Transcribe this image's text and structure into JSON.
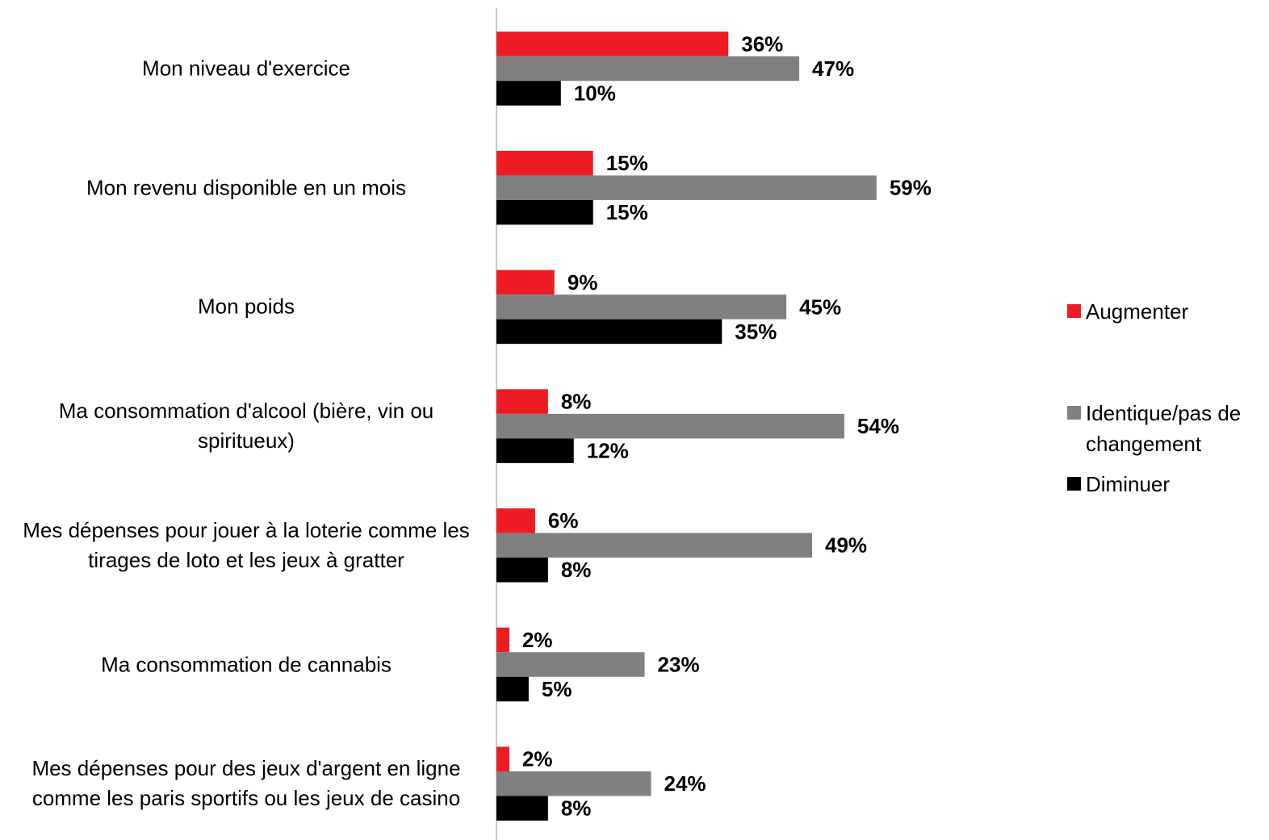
{
  "chart_data": {
    "type": "hbar",
    "categories": [
      "Mon niveau d'exercice",
      "Mon revenu disponible en un mois",
      "Mon poids",
      "Ma consommation d'alcool (bière, vin ou spiritueux)",
      "Mes dépenses pour jouer à la loterie comme les tirages de loto et les jeux à gratter",
      "Ma consommation de cannabis",
      "Mes dépenses pour des jeux d'argent en ligne comme les paris sportifs ou les jeux de casino"
    ],
    "xlim": [
      0,
      100
    ],
    "legend": "right",
    "series": [
      {
        "name": "Augmenter",
        "color": "#ed1c24",
        "values": [
          36,
          15,
          9,
          8,
          6,
          2,
          2
        ],
        "value_labels": [
          "36%",
          "15%",
          "9%",
          "8%",
          "6%",
          "2%",
          "2%"
        ]
      },
      {
        "name": "Identique/pas de changement",
        "color": "#808080",
        "values": [
          47,
          59,
          45,
          54,
          49,
          23,
          24
        ],
        "value_labels": [
          "47%",
          "59%",
          "45%",
          "54%",
          "49%",
          "23%",
          "24%"
        ]
      },
      {
        "name": "Diminuer",
        "color": "#000000",
        "values": [
          10,
          15,
          35,
          12,
          8,
          5,
          8
        ],
        "value_labels": [
          "10%",
          "15%",
          "35%",
          "12%",
          "8%",
          "5%",
          "8%"
        ]
      }
    ]
  }
}
